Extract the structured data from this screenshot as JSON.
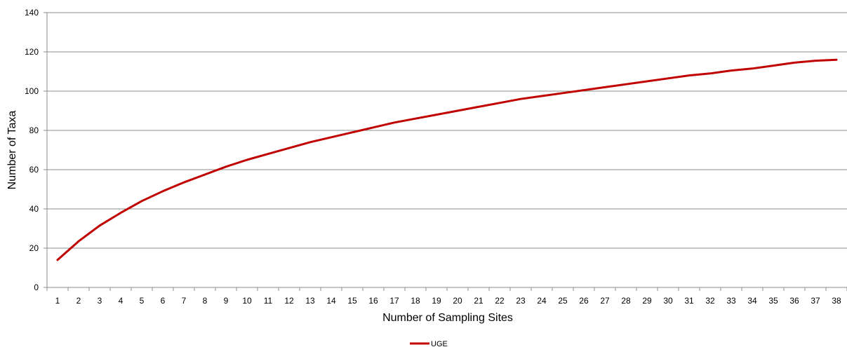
{
  "chart_data": {
    "type": "line",
    "title": "",
    "xlabel": "Number of Sampling Sites",
    "ylabel": "Number of Taxa",
    "ylim": [
      0,
      140
    ],
    "yticks": [
      0,
      20,
      40,
      60,
      80,
      100,
      120,
      140
    ],
    "grid": true,
    "legend_position": "bottom",
    "categories": [
      "1",
      "2",
      "3",
      "4",
      "5",
      "6",
      "7",
      "8",
      "9",
      "10",
      "11",
      "12",
      "13",
      "14",
      "15",
      "16",
      "17",
      "18",
      "19",
      "20",
      "21",
      "22",
      "23",
      "24",
      "25",
      "26",
      "27",
      "28",
      "29",
      "30",
      "31",
      "32",
      "33",
      "34",
      "35",
      "36",
      "37",
      "38"
    ],
    "series": [
      {
        "name": "UGE",
        "color": "#c00000",
        "values": [
          14,
          23.5,
          31.5,
          38,
          44,
          49,
          53.5,
          57.5,
          61.5,
          65,
          68,
          71,
          74,
          76.5,
          79,
          81.5,
          84,
          86,
          88,
          90,
          92,
          94,
          96,
          97.5,
          99,
          100.5,
          102,
          103.5,
          105,
          106.5,
          108,
          109,
          110.5,
          111.5,
          113,
          114.5,
          115.5,
          116
        ]
      }
    ]
  }
}
